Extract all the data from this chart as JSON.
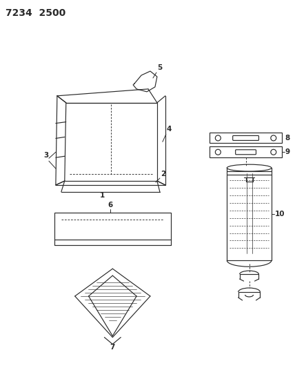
{
  "title": "7234  2500",
  "bg_color": "#ffffff",
  "line_color": "#2a2a2a",
  "title_fontsize": 10,
  "label_fontsize": 7.5,
  "fig_width": 4.28,
  "fig_height": 5.33,
  "dpi": 100
}
